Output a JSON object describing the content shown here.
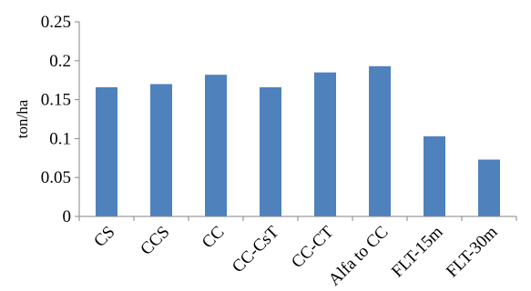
{
  "chart_data": {
    "type": "bar",
    "title": "",
    "xlabel": "",
    "ylabel": "ton/ha",
    "ylim": [
      0,
      0.25
    ],
    "yticks": [
      "0",
      "0.05",
      "0.1",
      "0.15",
      "0.2",
      "0.25"
    ],
    "categories": [
      "CS",
      "CCS",
      "CC",
      "CC-CsT",
      "CC-CT",
      "Alfa to CC",
      "FLT-15m",
      "FLT-30m"
    ],
    "values": [
      0.166,
      0.17,
      0.182,
      0.166,
      0.185,
      0.193,
      0.103,
      0.073
    ],
    "grid": false,
    "legend": "none",
    "bar_color": "#4F81BD",
    "axis_color": "#868686"
  }
}
